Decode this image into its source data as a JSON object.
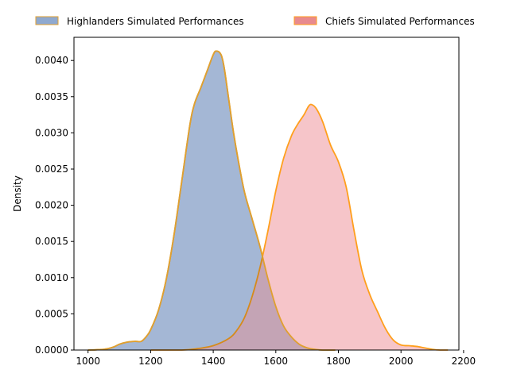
{
  "chart_data": {
    "type": "area",
    "title": "",
    "xlabel": "",
    "ylabel": "Density",
    "xlim": [
      955,
      2185
    ],
    "ylim": [
      0,
      0.00432
    ],
    "x_ticks": [
      1000,
      1200,
      1400,
      1600,
      1800,
      2000,
      2200
    ],
    "y_ticks": [
      0.0,
      0.0005,
      0.001,
      0.0015,
      0.002,
      0.0025,
      0.003,
      0.0035,
      0.004
    ],
    "y_tick_labels": [
      "0.0000",
      "0.0005",
      "0.0010",
      "0.0015",
      "0.0020",
      "0.0025",
      "0.0030",
      "0.0035",
      "0.0040"
    ],
    "x_tick_labels": [
      "1000",
      "1200",
      "1400",
      "1600",
      "1800",
      "2000",
      "2200"
    ],
    "grid": false,
    "legend_placement": "top, outside plot",
    "series": [
      {
        "name": "Highlanders Simulated Performances",
        "fill_color": "#b0c4de",
        "swatch_color": "#8fa9cf",
        "line_color": "#e0a030",
        "x": [
          1000,
          1050,
          1080,
          1100,
          1125,
          1150,
          1170,
          1185,
          1200,
          1225,
          1250,
          1275,
          1300,
          1325,
          1340,
          1360,
          1380,
          1400,
          1410,
          1425,
          1435,
          1450,
          1465,
          1480,
          1500,
          1525,
          1550,
          1575,
          1600,
          1625,
          1650,
          1675,
          1700,
          1725,
          1750,
          1790
        ],
        "y": [
          0.0,
          1e-05,
          4e-05,
          8e-05,
          0.00011,
          0.00012,
          0.00012,
          0.00018,
          0.00028,
          0.00055,
          0.00098,
          0.0016,
          0.00235,
          0.0031,
          0.0034,
          0.00362,
          0.00385,
          0.00408,
          0.00413,
          0.00408,
          0.0039,
          0.00345,
          0.003,
          0.00262,
          0.00218,
          0.0018,
          0.00142,
          0.00098,
          0.0006,
          0.00033,
          0.00018,
          8e-05,
          3e-05,
          1e-05,
          0.0,
          0.0
        ]
      },
      {
        "name": "Chiefs Simulated Performances",
        "fill_color": "#f4b6bc",
        "swatch_color": "#e88a8e",
        "line_color": "#ff9f1c",
        "x": [
          1200,
          1300,
          1350,
          1400,
          1450,
          1475,
          1500,
          1525,
          1550,
          1575,
          1600,
          1625,
          1650,
          1670,
          1690,
          1705,
          1715,
          1730,
          1750,
          1775,
          1800,
          1825,
          1850,
          1875,
          1900,
          1925,
          1950,
          1975,
          2000,
          2025,
          2050,
          2075,
          2100,
          2125,
          2150
        ],
        "y": [
          0.0,
          0.0,
          2e-05,
          6e-05,
          0.00016,
          0.00027,
          0.00045,
          0.00075,
          0.00115,
          0.00165,
          0.0022,
          0.00265,
          0.00296,
          0.00312,
          0.00325,
          0.00337,
          0.00339,
          0.00333,
          0.00315,
          0.00283,
          0.0026,
          0.00225,
          0.00165,
          0.0011,
          0.00077,
          0.00053,
          0.0003,
          0.00014,
          7e-05,
          6e-05,
          5e-05,
          3e-05,
          1e-05,
          0.0,
          0.0
        ]
      }
    ]
  }
}
